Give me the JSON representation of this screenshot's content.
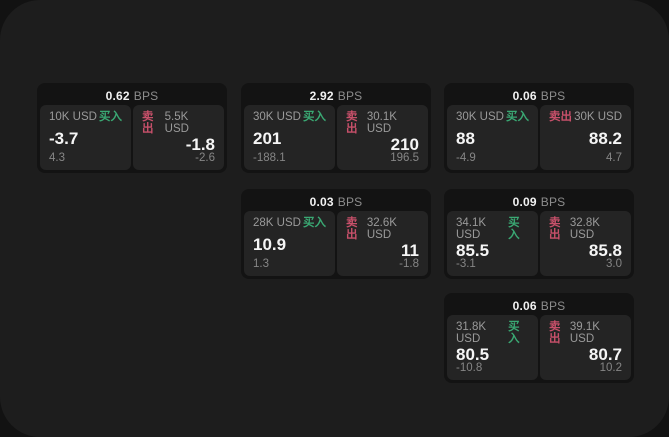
{
  "theme": {
    "outer_bg": "#121212",
    "panel_bg": "#1d1d1d",
    "card_bg": "#131313",
    "tile_bg": "#242424",
    "buy_color": "#3aa873",
    "sell_color": "#c7506a"
  },
  "labels": {
    "bps_unit": "BPS",
    "buy": "买入",
    "sell": "卖出"
  },
  "cards": [
    {
      "bps": "0.62",
      "buy": {
        "amount": "10K USD",
        "price": "-3.7",
        "delta": "4.3"
      },
      "sell": {
        "amount": "5.5K USD",
        "price": "-1.8",
        "delta": "-2.6"
      }
    },
    {
      "bps": "2.92",
      "buy": {
        "amount": "30K USD",
        "price": "201",
        "delta": "-188.1"
      },
      "sell": {
        "amount": "30.1K USD",
        "price": "210",
        "delta": "196.5"
      }
    },
    {
      "bps": "0.06",
      "buy": {
        "amount": "30K USD",
        "price": "88",
        "delta": "-4.9"
      },
      "sell": {
        "amount": "30K USD",
        "price": "88.2",
        "delta": "4.7"
      }
    },
    {
      "bps": "0.03",
      "buy": {
        "amount": "28K USD",
        "price": "10.9",
        "delta": "1.3"
      },
      "sell": {
        "amount": "32.6K USD",
        "price": "11",
        "delta": "-1.8"
      }
    },
    {
      "bps": "0.09",
      "buy": {
        "amount": "34.1K USD",
        "price": "85.5",
        "delta": "-3.1"
      },
      "sell": {
        "amount": "32.8K USD",
        "price": "85.8",
        "delta": "3.0"
      }
    },
    {
      "bps": "0.06",
      "buy": {
        "amount": "31.8K USD",
        "price": "80.5",
        "delta": "-10.8"
      },
      "sell": {
        "amount": "39.1K USD",
        "price": "80.7",
        "delta": "10.2"
      }
    }
  ]
}
